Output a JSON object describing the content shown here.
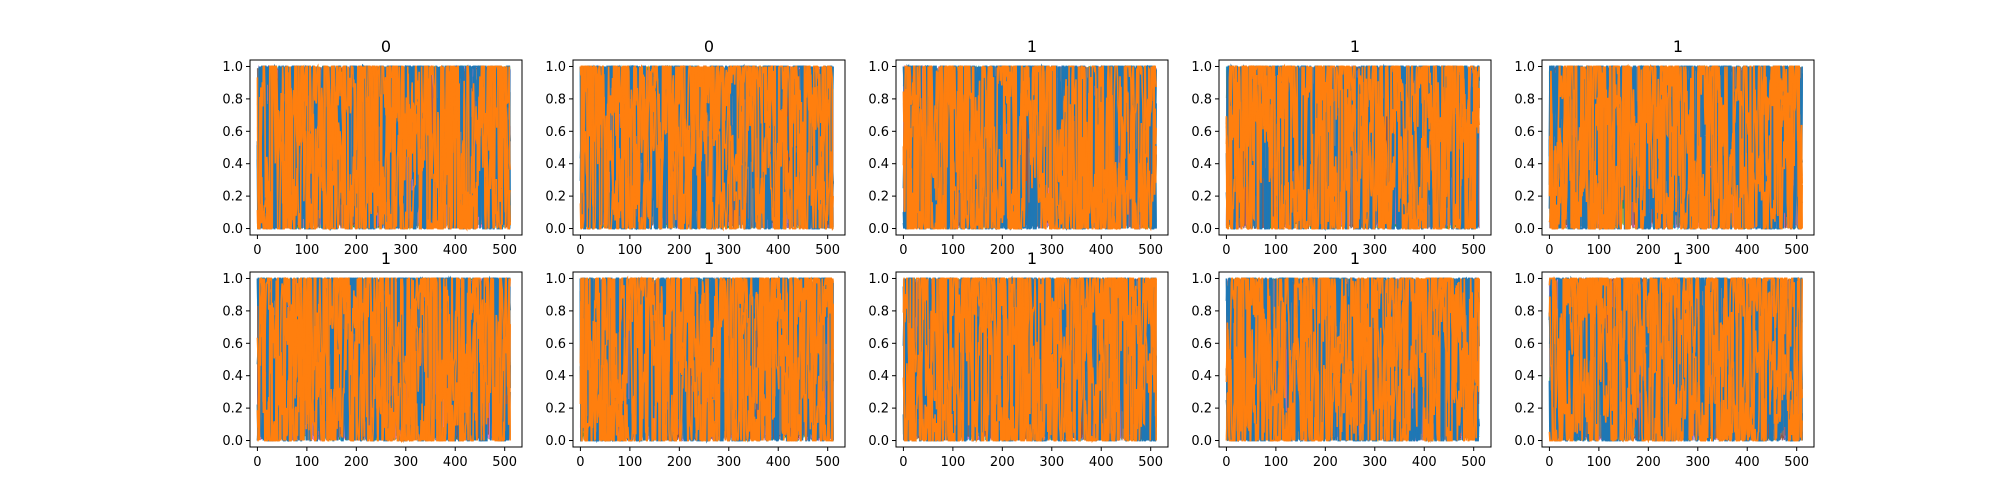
{
  "figure": {
    "background": "#ffffff"
  },
  "chart_data": [
    {
      "type": "line",
      "title": "0",
      "xlabel": "",
      "ylabel": "",
      "xlim": [
        -15,
        535
      ],
      "ylim": [
        -0.04,
        1.04
      ],
      "xticks": [
        "0",
        "100",
        "200",
        "300",
        "400",
        "500"
      ],
      "yticks": [
        "0.0",
        "0.2",
        "0.4",
        "0.6",
        "0.8",
        "1.0"
      ],
      "grid": false,
      "n_points": 512,
      "series_colors": [
        "#1f77b4",
        "#ff7f0e"
      ],
      "accent_colors": [
        "#17becf",
        "#bcbd22",
        "#2ca02c",
        "#9467bd",
        "#e377c2",
        "#8c564b",
        "#7f7f7f"
      ],
      "seed": 11
    },
    {
      "type": "line",
      "title": "0",
      "xlabel": "",
      "ylabel": "",
      "xlim": [
        -15,
        535
      ],
      "ylim": [
        -0.04,
        1.04
      ],
      "xticks": [
        "0",
        "100",
        "200",
        "300",
        "400",
        "500"
      ],
      "yticks": [
        "0.0",
        "0.2",
        "0.4",
        "0.6",
        "0.8",
        "1.0"
      ],
      "grid": false,
      "n_points": 512,
      "series_colors": [
        "#1f77b4",
        "#ff7f0e"
      ],
      "accent_colors": [
        "#17becf",
        "#bcbd22",
        "#2ca02c",
        "#9467bd",
        "#e377c2",
        "#8c564b",
        "#7f7f7f"
      ],
      "seed": 23
    },
    {
      "type": "line",
      "title": "1",
      "xlabel": "",
      "ylabel": "",
      "xlim": [
        -15,
        535
      ],
      "ylim": [
        -0.04,
        1.04
      ],
      "xticks": [
        "0",
        "100",
        "200",
        "300",
        "400",
        "500"
      ],
      "yticks": [
        "0.0",
        "0.2",
        "0.4",
        "0.6",
        "0.8",
        "1.0"
      ],
      "grid": false,
      "n_points": 512,
      "series_colors": [
        "#1f77b4",
        "#ff7f0e"
      ],
      "accent_colors": [
        "#17becf",
        "#bcbd22",
        "#2ca02c",
        "#9467bd",
        "#e377c2",
        "#8c564b",
        "#7f7f7f"
      ],
      "seed": 37
    },
    {
      "type": "line",
      "title": "1",
      "xlabel": "",
      "ylabel": "",
      "xlim": [
        -15,
        535
      ],
      "ylim": [
        -0.04,
        1.04
      ],
      "xticks": [
        "0",
        "100",
        "200",
        "300",
        "400",
        "500"
      ],
      "yticks": [
        "0.0",
        "0.2",
        "0.4",
        "0.6",
        "0.8",
        "1.0"
      ],
      "grid": false,
      "n_points": 512,
      "series_colors": [
        "#1f77b4",
        "#ff7f0e"
      ],
      "accent_colors": [
        "#17becf",
        "#bcbd22",
        "#2ca02c",
        "#9467bd",
        "#e377c2",
        "#8c564b",
        "#7f7f7f"
      ],
      "seed": 41
    },
    {
      "type": "line",
      "title": "1",
      "xlabel": "",
      "ylabel": "",
      "xlim": [
        -15,
        535
      ],
      "ylim": [
        -0.04,
        1.04
      ],
      "xticks": [
        "0",
        "100",
        "200",
        "300",
        "400",
        "500"
      ],
      "yticks": [
        "0.0",
        "0.2",
        "0.4",
        "0.6",
        "0.8",
        "1.0"
      ],
      "grid": false,
      "n_points": 512,
      "series_colors": [
        "#1f77b4",
        "#ff7f0e"
      ],
      "accent_colors": [
        "#17becf",
        "#bcbd22",
        "#2ca02c",
        "#9467bd",
        "#e377c2",
        "#8c564b",
        "#7f7f7f"
      ],
      "seed": 53
    },
    {
      "type": "line",
      "title": "1",
      "xlabel": "",
      "ylabel": "",
      "xlim": [
        -15,
        535
      ],
      "ylim": [
        -0.04,
        1.04
      ],
      "xticks": [
        "0",
        "100",
        "200",
        "300",
        "400",
        "500"
      ],
      "yticks": [
        "0.0",
        "0.2",
        "0.4",
        "0.6",
        "0.8",
        "1.0"
      ],
      "grid": false,
      "n_points": 512,
      "series_colors": [
        "#1f77b4",
        "#ff7f0e"
      ],
      "accent_colors": [
        "#17becf",
        "#bcbd22",
        "#2ca02c",
        "#9467bd",
        "#e377c2",
        "#8c564b",
        "#7f7f7f"
      ],
      "seed": 67
    },
    {
      "type": "line",
      "title": "1",
      "xlabel": "",
      "ylabel": "",
      "xlim": [
        -15,
        535
      ],
      "ylim": [
        -0.04,
        1.04
      ],
      "xticks": [
        "0",
        "100",
        "200",
        "300",
        "400",
        "500"
      ],
      "yticks": [
        "0.0",
        "0.2",
        "0.4",
        "0.6",
        "0.8",
        "1.0"
      ],
      "grid": false,
      "n_points": 512,
      "series_colors": [
        "#1f77b4",
        "#ff7f0e"
      ],
      "accent_colors": [
        "#17becf",
        "#bcbd22",
        "#2ca02c",
        "#9467bd",
        "#e377c2",
        "#8c564b",
        "#7f7f7f"
      ],
      "seed": 71
    },
    {
      "type": "line",
      "title": "1",
      "xlabel": "",
      "ylabel": "",
      "xlim": [
        -15,
        535
      ],
      "ylim": [
        -0.04,
        1.04
      ],
      "xticks": [
        "0",
        "100",
        "200",
        "300",
        "400",
        "500"
      ],
      "yticks": [
        "0.0",
        "0.2",
        "0.4",
        "0.6",
        "0.8",
        "1.0"
      ],
      "grid": false,
      "n_points": 512,
      "series_colors": [
        "#1f77b4",
        "#ff7f0e"
      ],
      "accent_colors": [
        "#17becf",
        "#bcbd22",
        "#2ca02c",
        "#9467bd",
        "#e377c2",
        "#8c564b",
        "#7f7f7f"
      ],
      "seed": 83
    },
    {
      "type": "line",
      "title": "1",
      "xlabel": "",
      "ylabel": "",
      "xlim": [
        -15,
        535
      ],
      "ylim": [
        -0.04,
        1.04
      ],
      "xticks": [
        "0",
        "100",
        "200",
        "300",
        "400",
        "500"
      ],
      "yticks": [
        "0.0",
        "0.2",
        "0.4",
        "0.6",
        "0.8",
        "1.0"
      ],
      "grid": false,
      "n_points": 512,
      "series_colors": [
        "#1f77b4",
        "#ff7f0e"
      ],
      "accent_colors": [
        "#17becf",
        "#bcbd22",
        "#2ca02c",
        "#9467bd",
        "#e377c2",
        "#8c564b",
        "#7f7f7f"
      ],
      "seed": 97
    },
    {
      "type": "line",
      "title": "1",
      "xlabel": "",
      "ylabel": "",
      "xlim": [
        -15,
        535
      ],
      "ylim": [
        -0.04,
        1.04
      ],
      "xticks": [
        "0",
        "100",
        "200",
        "300",
        "400",
        "500"
      ],
      "yticks": [
        "0.0",
        "0.2",
        "0.4",
        "0.6",
        "0.8",
        "1.0"
      ],
      "grid": false,
      "n_points": 512,
      "series_colors": [
        "#1f77b4",
        "#ff7f0e"
      ],
      "accent_colors": [
        "#17becf",
        "#bcbd22",
        "#2ca02c",
        "#9467bd",
        "#e377c2",
        "#8c564b",
        "#7f7f7f"
      ],
      "seed": 101
    }
  ]
}
